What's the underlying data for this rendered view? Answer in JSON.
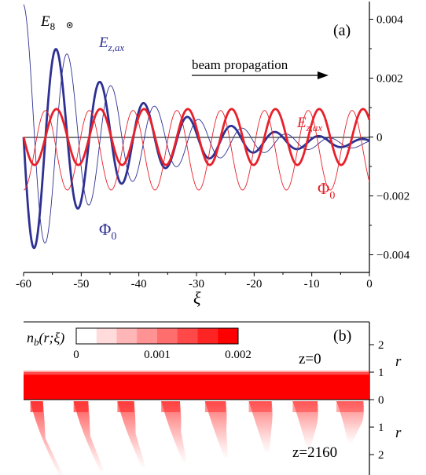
{
  "chart_data": [
    {
      "type": "line",
      "panel_label": "(a)",
      "xlabel": "ξ",
      "xlim": [
        -60,
        0
      ],
      "x_ticks": [
        "-60",
        "-50",
        "-40",
        "-30",
        "-20",
        "-10",
        "0"
      ],
      "ylim": [
        -0.0046,
        0.0046
      ],
      "y_axis_side": "right",
      "y_ticks": [
        "0.004",
        "0.002",
        "0",
        "−0.002",
        "−0.004"
      ],
      "y_tick_values": [
        0.004,
        0.002,
        0,
        -0.002,
        -0.004
      ],
      "annotation": "beam propagation",
      "marker_label": "E",
      "marker_subscript": "8",
      "marker_point": {
        "x": -52.0,
        "y": 0.0038
      },
      "series": [
        {
          "name": "E",
          "name_sub": "z,ax",
          "color": "#2e3192",
          "line": "thin",
          "curve": "decaying_oscillation",
          "x_start": -60,
          "x_end": 0,
          "peak_amplitude": 0.0045,
          "final_amplitude": 0.00012,
          "period": 7.6,
          "phase_at_x0": 0.0,
          "offset": -0.00024
        },
        {
          "name": "Φ",
          "name_sub": "0",
          "color": "#2e3192",
          "line": "thick",
          "curve": "decaying_oscillation",
          "x_start": -60,
          "x_end": 0,
          "peak_amplitude": 0.0042,
          "final_amplitude": 0.00012,
          "period": 7.6,
          "phase_at_x0": 1.5708,
          "offset": -0.0002
        },
        {
          "name": "E",
          "name_sub": "z,ax",
          "color": "#e8202a",
          "line": "thin",
          "curve": "sinusoid",
          "x_start": -60,
          "x_end": 0,
          "center": -0.00045,
          "amplitude": 0.00135,
          "period": 7.6,
          "phase_at_x0": 3.1416
        },
        {
          "name": "Φ",
          "name_sub": "0",
          "color": "#e8202a",
          "line": "thick",
          "curve": "sinusoid",
          "x_start": -60,
          "x_end": 0,
          "center": 0.0,
          "amplitude": 0.00095,
          "period": 7.6,
          "phase_at_x0": 1.5708
        }
      ]
    },
    {
      "type": "heatmap",
      "panel_label": "(b)",
      "colorbar_label": "n",
      "colorbar_label_sub": "b",
      "colorbar_label_args": "(r;ξ)",
      "colorbar_range": [
        0,
        0.002
      ],
      "colorbar_ticks": [
        "0",
        "0.001",
        "0.002"
      ],
      "colorbar_tick_values": [
        0,
        0.001,
        0.002
      ],
      "colorbar_low_color": "#ffffff",
      "colorbar_high_color": "#ff0000",
      "xlim": [
        -60,
        0
      ],
      "upper_panel": {
        "label": "z=0",
        "r_ticks": [
          "2",
          "1",
          "0"
        ],
        "r_tick_values": [
          2,
          1,
          0
        ],
        "r_axis_label": "r",
        "beam_r_max": 1.0,
        "beam_density": 0.002
      },
      "lower_panel": {
        "label": "z=2160",
        "r_ticks": [
          "1",
          "2"
        ],
        "r_tick_values": [
          1,
          2
        ],
        "r_axis_label": "r",
        "bunch_x_positions": [
          -58.0,
          -50.5,
          -42.9,
          -35.3,
          -27.7,
          -20.1,
          -12.5,
          -4.9
        ],
        "bunch_density": [
          0.0014,
          0.0013,
          0.0012,
          0.0011,
          0.001,
          0.0009,
          0.00085,
          0.0008
        ]
      }
    }
  ]
}
